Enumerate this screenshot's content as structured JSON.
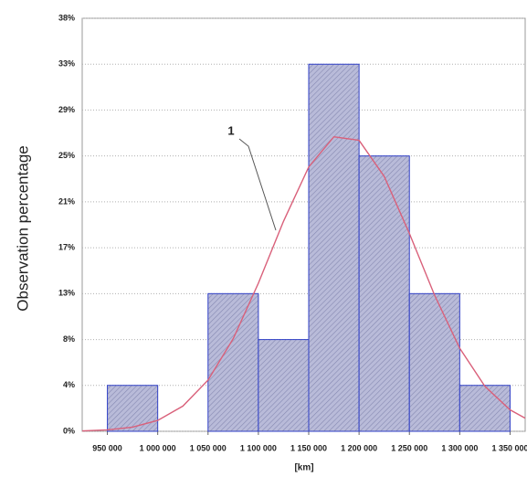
{
  "chart_data": {
    "type": "histogram",
    "y_label": "Observation percentage",
    "x_label": "[km]",
    "annotation": "1",
    "bins": [
      950000,
      1000000,
      1050000,
      1100000,
      1150000,
      1200000,
      1250000,
      1300000,
      1350000
    ],
    "values": [
      4.17,
      0,
      12.5,
      8.33,
      33.33,
      25,
      12.5,
      4.17
    ],
    "color": "#b9bbd9",
    "edge_color": "#2f3fc8",
    "xlim": [
      925000,
      1365000
    ],
    "ylim": [
      0,
      37.5
    ],
    "xticks": [
      {
        "value": 950000,
        "label": "950 000"
      },
      {
        "value": 1000000,
        "label": "1 000 000"
      },
      {
        "value": 1050000,
        "label": "1 050 000"
      },
      {
        "value": 1100000,
        "label": "1 100 000"
      },
      {
        "value": 1150000,
        "label": "1 150 000"
      },
      {
        "value": 1200000,
        "label": "1 200 000"
      },
      {
        "value": 1250000,
        "label": "1 250 000"
      },
      {
        "value": 1300000,
        "label": "1 300 000"
      },
      {
        "value": 1350000,
        "label": "1 350 000"
      }
    ],
    "yticks": [
      {
        "value": 0,
        "label": "0%"
      },
      {
        "value": 4.17,
        "label": "4%"
      },
      {
        "value": 8.33,
        "label": "8%"
      },
      {
        "value": 12.5,
        "label": "13%"
      },
      {
        "value": 16.67,
        "label": "17%"
      },
      {
        "value": 20.83,
        "label": "21%"
      },
      {
        "value": 25,
        "label": "25%"
      },
      {
        "value": 29.17,
        "label": "29%"
      },
      {
        "value": 33.33,
        "label": "33%"
      },
      {
        "value": 37.5,
        "label": "38%"
      }
    ],
    "grid": true,
    "curve": {
      "color": "#d9607a",
      "x": [
        925000,
        950000,
        975000,
        1000000,
        1025000,
        1050000,
        1075000,
        1100000,
        1125000,
        1150000,
        1175000,
        1200000,
        1225000,
        1250000,
        1275000,
        1300000,
        1325000,
        1350000,
        1365000
      ],
      "values": [
        0.04,
        0.13,
        0.38,
        0.99,
        2.29,
        4.65,
        8.41,
        13.45,
        19.08,
        24.0,
        26.74,
        26.42,
        23.14,
        17.96,
        12.36,
        7.54,
        4.08,
        1.95,
        1.19
      ]
    }
  }
}
